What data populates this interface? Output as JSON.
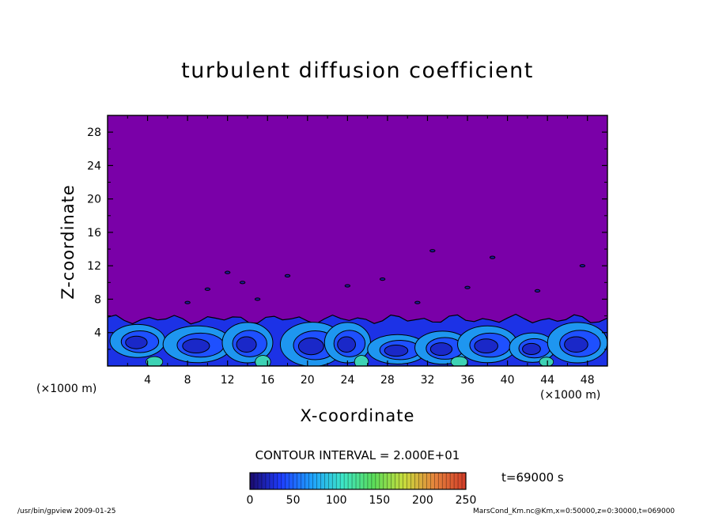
{
  "chart_data": {
    "type": "heatmap",
    "title": "turbulent diffusion coefficient",
    "xlabel": "X-coordinate",
    "ylabel": "Z-coordinate",
    "x_unit_left": "(×1000 m)",
    "x_unit_right": "(×1000 m)",
    "xlim": [
      0,
      50
    ],
    "ylim": [
      0,
      30
    ],
    "x_ticks": [
      "4",
      "8",
      "12",
      "16",
      "20",
      "24",
      "28",
      "32",
      "36",
      "40",
      "44",
      "48"
    ],
    "y_ticks": [
      "4",
      "8",
      "12",
      "16",
      "20",
      "24",
      "28"
    ],
    "contour_interval_text": "CONTOUR INTERVAL = 2.000E+01",
    "time_text": "t=69000 s",
    "colorbar": {
      "min": 0,
      "max": 250,
      "tick_labels": [
        "0",
        "50",
        "100",
        "150",
        "200",
        "250"
      ],
      "colors": [
        "#1a0a6b",
        "#1e3cff",
        "#1ea0ff",
        "#3ce6c8",
        "#5adc5a",
        "#c8dc3c",
        "#e6823c",
        "#d23c28"
      ]
    },
    "background_color": "#7a00a8",
    "plume_top_km": 5.6,
    "clusters": [
      {
        "x": 3,
        "z": 3.0,
        "rx": 2.4,
        "rz": 1.8
      },
      {
        "x": 9,
        "z": 2.6,
        "rx": 3.0,
        "rz": 2.0
      },
      {
        "x": 14,
        "z": 2.8,
        "rx": 2.2,
        "rz": 2.2
      },
      {
        "x": 20.5,
        "z": 2.6,
        "rx": 2.8,
        "rz": 2.4
      },
      {
        "x": 24,
        "z": 2.8,
        "rx": 2.0,
        "rz": 2.2
      },
      {
        "x": 29,
        "z": 2.0,
        "rx": 2.6,
        "rz": 1.6
      },
      {
        "x": 33.5,
        "z": 2.2,
        "rx": 2.4,
        "rz": 1.8
      },
      {
        "x": 38,
        "z": 2.6,
        "rx": 2.6,
        "rz": 2.0
      },
      {
        "x": 42.5,
        "z": 2.2,
        "rx": 2.0,
        "rz": 1.6
      },
      {
        "x": 47,
        "z": 2.8,
        "rx": 2.6,
        "rz": 2.2
      }
    ],
    "specks": [
      {
        "x": 12,
        "z": 11.2
      },
      {
        "x": 13.5,
        "z": 10.0
      },
      {
        "x": 10,
        "z": 9.2
      },
      {
        "x": 18,
        "z": 10.8
      },
      {
        "x": 24,
        "z": 9.6
      },
      {
        "x": 31,
        "z": 7.6
      },
      {
        "x": 32.5,
        "z": 13.8
      },
      {
        "x": 36,
        "z": 9.4
      },
      {
        "x": 43,
        "z": 9.0
      },
      {
        "x": 47.5,
        "z": 12.0
      },
      {
        "x": 8,
        "z": 7.6
      },
      {
        "x": 27.5,
        "z": 10.4
      },
      {
        "x": 38.5,
        "z": 13.0
      },
      {
        "x": 15,
        "z": 8.0
      }
    ]
  },
  "footer": {
    "left": "/usr/bin/gpview  2009-01-25",
    "right": "MarsCond_Km.nc@Km,x=0:50000,z=0:30000,t=069000"
  }
}
